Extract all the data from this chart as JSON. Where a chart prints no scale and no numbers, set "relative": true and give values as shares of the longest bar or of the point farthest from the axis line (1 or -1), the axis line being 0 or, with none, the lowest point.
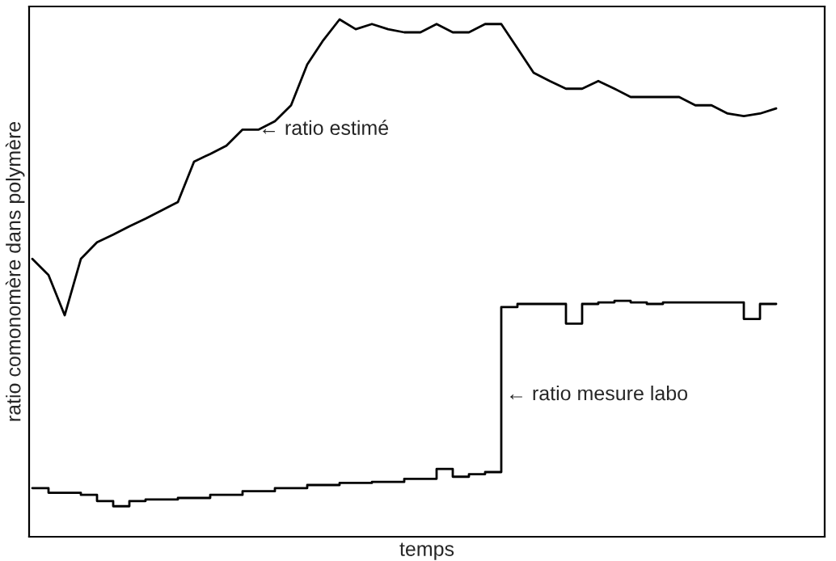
{
  "chart_data": {
    "type": "line",
    "relative": true,
    "xlabel": "temps",
    "ylabel": "ratio comonomère dans polymère",
    "categories": [
      null,
      null,
      null,
      null,
      null,
      null,
      null,
      null,
      null,
      null,
      null,
      null,
      null,
      null,
      null,
      null,
      null,
      null,
      null,
      null,
      null,
      null,
      null,
      null,
      null,
      null,
      null,
      null,
      null,
      null,
      null,
      null,
      null,
      null,
      null,
      null,
      null,
      null,
      null,
      null,
      null,
      null,
      null,
      null,
      null,
      null,
      null
    ],
    "series": [
      {
        "name": "← ratio estimé",
        "color": "#000000",
        "values": [
          0.537,
          0.506,
          0.428,
          0.537,
          0.569,
          0.584,
          0.6,
          0.615,
          0.631,
          0.647,
          0.725,
          0.74,
          0.756,
          0.787,
          0.787,
          0.803,
          0.834,
          0.913,
          0.96,
          1.0,
          0.981,
          0.991,
          0.981,
          0.975,
          0.975,
          0.991,
          0.975,
          0.975,
          0.991,
          0.991,
          0.944,
          0.897,
          0.881,
          0.866,
          0.866,
          0.881,
          0.866,
          0.85,
          0.85,
          0.85,
          0.85,
          0.834,
          0.834,
          0.818,
          0.813,
          0.818,
          0.828
        ]
      },
      {
        "name": "← ratio mesure labo",
        "type": "step",
        "color": "#000000",
        "values": [
          0.094,
          0.085,
          0.085,
          0.081,
          0.069,
          0.059,
          0.069,
          0.072,
          0.072,
          0.075,
          0.075,
          0.081,
          0.081,
          0.088,
          0.088,
          0.094,
          0.094,
          0.1,
          0.1,
          0.104,
          0.104,
          0.106,
          0.106,
          0.112,
          0.112,
          0.131,
          0.116,
          0.121,
          0.125,
          0.444,
          0.45,
          0.45,
          0.45,
          0.412,
          0.45,
          0.453,
          0.456,
          0.453,
          0.45,
          0.453,
          0.453,
          0.453,
          0.453,
          0.453,
          0.421,
          0.45,
          0.45
        ]
      }
    ]
  }
}
